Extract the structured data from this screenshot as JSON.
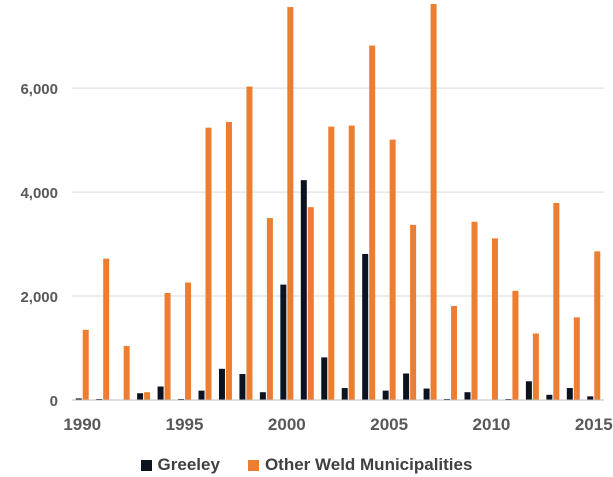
{
  "chart_data": {
    "type": "bar",
    "title": "",
    "xlabel": "",
    "ylabel": "",
    "ylim": [
      0,
      7600
    ],
    "y_ticks": [
      "0",
      "2,000",
      "4,000",
      "6,000"
    ],
    "y_tick_values": [
      0,
      2000,
      4000,
      6000
    ],
    "x_tick_labels": [
      "1990",
      "1995",
      "2000",
      "2005",
      "2010",
      "2015"
    ],
    "x_tick_years": [
      1990,
      1995,
      2000,
      2005,
      2010,
      2015
    ],
    "categories": [
      1990,
      1991,
      1992,
      1993,
      1994,
      1995,
      1996,
      1997,
      1998,
      1999,
      2000,
      2001,
      2002,
      2003,
      2004,
      2005,
      2006,
      2007,
      2008,
      2009,
      2010,
      2011,
      2012,
      2013,
      2014,
      2015
    ],
    "grid": true,
    "legend_position": "bottom",
    "series": [
      {
        "name": "Greeley",
        "color": "#0b1220",
        "values": [
          30,
          10,
          0,
          130,
          260,
          20,
          180,
          600,
          500,
          150,
          2220,
          4230,
          820,
          230,
          2810,
          180,
          510,
          220,
          20,
          150,
          0,
          10,
          360,
          100,
          230,
          70
        ]
      },
      {
        "name": "Other Weld Municipalities",
        "color": "#ed7d31",
        "values": [
          1350,
          2720,
          1040,
          150,
          2060,
          2260,
          5240,
          5350,
          6030,
          3500,
          7560,
          3710,
          5260,
          5280,
          6820,
          5010,
          3370,
          7620,
          1810,
          3430,
          3110,
          2100,
          1280,
          3790,
          1590,
          2860
        ]
      }
    ]
  }
}
